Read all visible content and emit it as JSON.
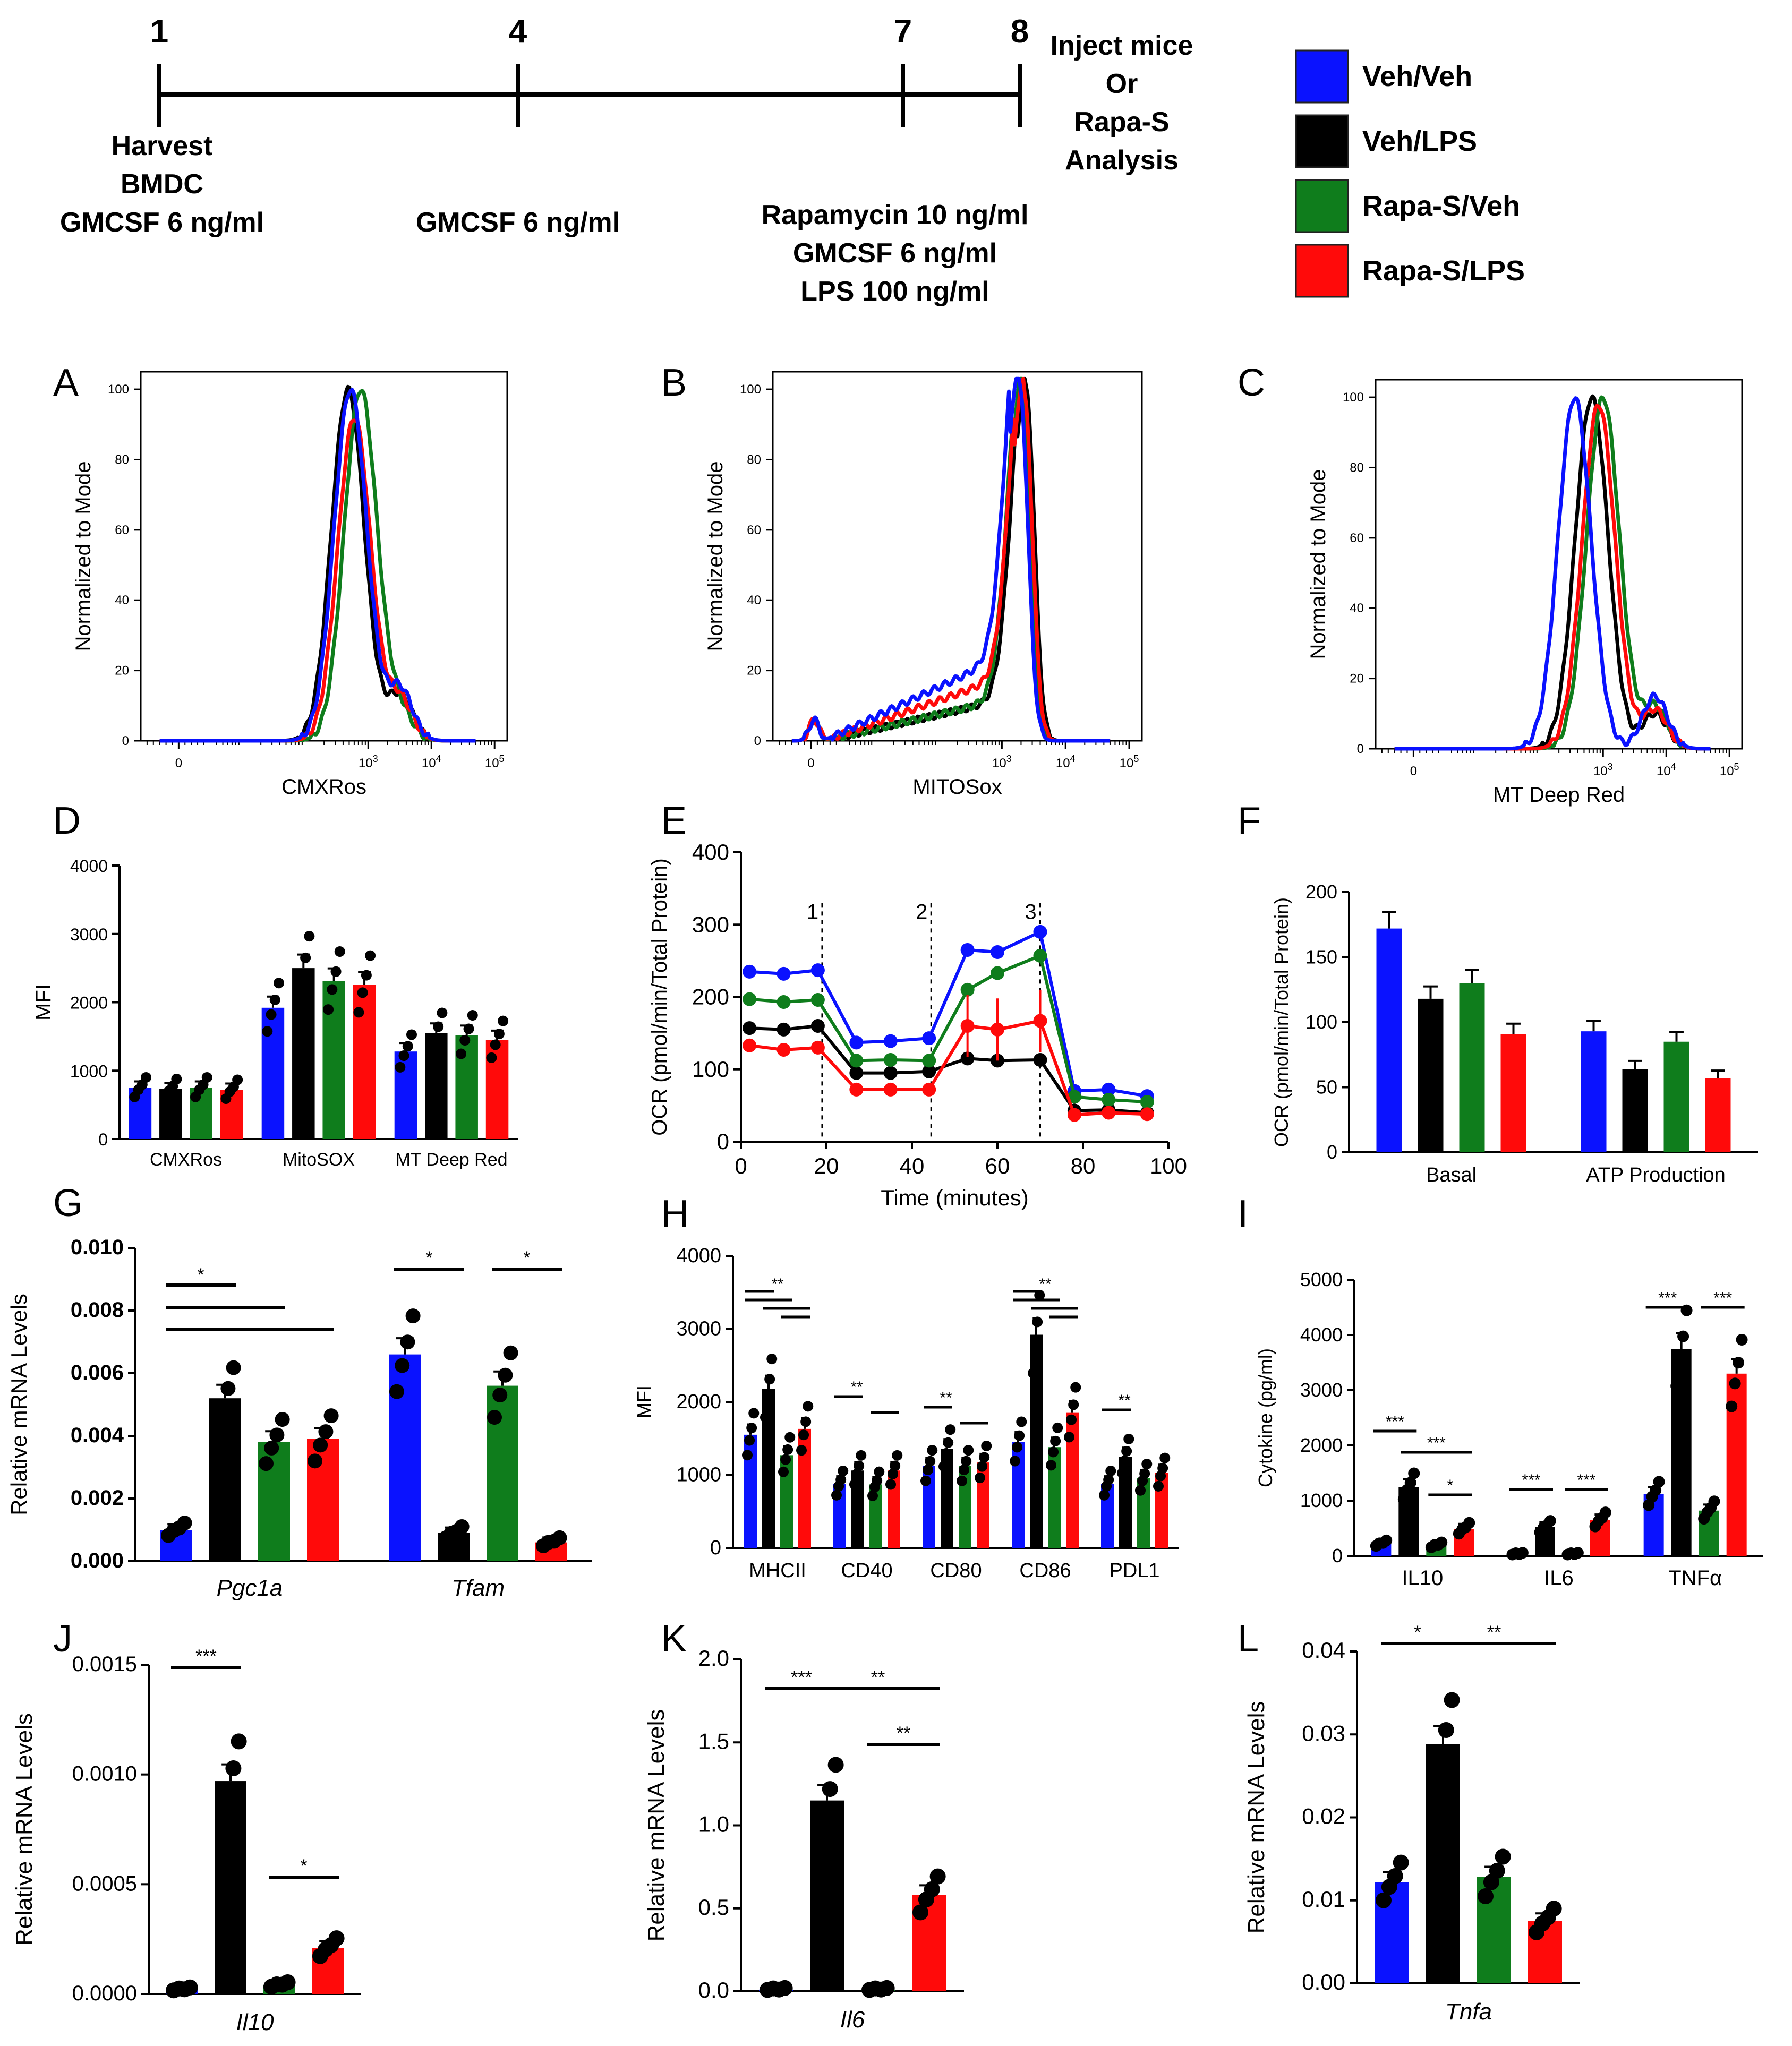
{
  "timeline": {
    "days": [
      "1",
      "4",
      "7",
      "8"
    ],
    "d1_text": [
      "Harvest",
      "BMDC",
      "GMCSF 6 ng/ml"
    ],
    "d4_text": [
      "GMCSF 6 ng/ml"
    ],
    "d7_text": [
      "Rapamycin 10 ng/ml",
      "GMCSF 6 ng/ml",
      "LPS 100 ng/ml"
    ],
    "d8_text": [
      "Inject mice",
      "Or",
      "Rapa-S",
      "Analysis"
    ]
  },
  "legend": [
    {
      "label": "Veh/Veh",
      "color": "#0a12ff"
    },
    {
      "label": "Veh/LPS",
      "color": "#000000"
    },
    {
      "label": "Rapa-S/Veh",
      "color": "#0f7d1c"
    },
    {
      "label": "Rapa-S/LPS",
      "color": "#ff0a0a"
    }
  ],
  "colors": {
    "veh_veh": "#0a12ff",
    "veh_lps": "#000000",
    "rapa_veh": "#0f7d1c",
    "rapa_lps": "#ff0a0a"
  },
  "panel_letters": [
    "A",
    "B",
    "C",
    "D",
    "E",
    "F",
    "G",
    "H",
    "I",
    "J",
    "K",
    "L"
  ],
  "chart_data": [
    {
      "panel": "A",
      "type": "line",
      "xlabel": "CMXRos",
      "ylabel": "Normalized to Mode",
      "yticks": [
        "0",
        "20",
        "40",
        "60",
        "80",
        "100"
      ],
      "xticks": [
        "0",
        "10^3",
        "10^4",
        "10^5"
      ],
      "series": [
        {
          "name": "Veh/Veh",
          "peak_log": 2.72,
          "peak": 100,
          "second_peak": 15
        },
        {
          "name": "Veh/LPS",
          "peak_log": 2.68,
          "peak": 100,
          "second_peak": 13
        },
        {
          "name": "Rapa-S/Veh",
          "peak_log": 2.88,
          "peak": 100,
          "second_peak": 8
        },
        {
          "name": "Rapa-S/LPS",
          "peak_log": 2.78,
          "peak": 92,
          "second_peak": 12
        }
      ]
    },
    {
      "panel": "B",
      "type": "line",
      "xlabel": "MITOSox",
      "ylabel": "Normalized to Mode",
      "yticks": [
        "0",
        "20",
        "40",
        "60",
        "80",
        "100"
      ],
      "xticks": [
        "0",
        "10^3",
        "10^4",
        "10^5"
      ],
      "series": [
        {
          "name": "Veh/Veh",
          "peak_log": 3.28,
          "peak": 100
        },
        {
          "name": "Veh/LPS",
          "peak_log": 3.38,
          "peak": 100
        },
        {
          "name": "Rapa-S/Veh",
          "peak_log": 3.32,
          "peak": 100
        },
        {
          "name": "Rapa-S/LPS",
          "peak_log": 3.35,
          "peak": 98
        }
      ]
    },
    {
      "panel": "C",
      "type": "line",
      "xlabel": "MT Deep Red",
      "ylabel": "Normalized to Mode",
      "yticks": [
        "0",
        "20",
        "40",
        "60",
        "80",
        "100"
      ],
      "xticks": [
        "0",
        "10^3",
        "10^4",
        "10^5"
      ],
      "series": [
        {
          "name": "Veh/Veh",
          "peak_log": 2.55,
          "peak": 100,
          "second_peak": 15
        },
        {
          "name": "Veh/LPS",
          "peak_log": 2.82,
          "peak": 100,
          "second_peak": 10
        },
        {
          "name": "Rapa-S/Veh",
          "peak_log": 3.0,
          "peak": 100,
          "second_peak": 12
        },
        {
          "name": "Rapa-S/LPS",
          "peak_log": 2.93,
          "peak": 98,
          "second_peak": 11
        }
      ]
    },
    {
      "panel": "D",
      "type": "bar",
      "ylabel": "MFI",
      "ylim": [
        0,
        4000
      ],
      "yticks": [
        "0",
        "1000",
        "2000",
        "3000",
        "4000"
      ],
      "categories": [
        "CMXRos",
        "MitoSOX",
        "MT Deep Red"
      ],
      "series": [
        {
          "name": "Veh/Veh",
          "values": [
            750,
            1920,
            1280
          ]
        },
        {
          "name": "Veh/LPS",
          "values": [
            730,
            2500,
            1550
          ]
        },
        {
          "name": "Rapa-S/Veh",
          "values": [
            750,
            2310,
            1520
          ]
        },
        {
          "name": "Rapa-S/LPS",
          "values": [
            720,
            2260,
            1450
          ]
        }
      ]
    },
    {
      "panel": "E",
      "type": "line",
      "xlabel": "Time (minutes)",
      "ylabel": "OCR (pmol/min/Total Protein)",
      "xlim": [
        0,
        100
      ],
      "ylim": [
        0,
        400
      ],
      "xticks": [
        "0",
        "20",
        "40",
        "60",
        "80",
        "100"
      ],
      "yticks": [
        "0",
        "100",
        "200",
        "300",
        "400"
      ],
      "injections": [
        {
          "label": "1",
          "x": 19
        },
        {
          "label": "2",
          "x": 44.5
        },
        {
          "label": "3",
          "x": 70
        }
      ],
      "x": [
        2,
        10,
        18,
        27,
        35,
        44,
        53,
        60,
        70,
        78,
        86,
        95
      ],
      "series": [
        {
          "name": "Veh/Veh",
          "values": [
            235,
            232,
            237,
            137,
            139,
            143,
            265,
            262,
            290,
            70,
            72,
            63
          ]
        },
        {
          "name": "Veh/LPS",
          "values": [
            157,
            155,
            160,
            95,
            95,
            97,
            115,
            112,
            113,
            43,
            44,
            40
          ]
        },
        {
          "name": "Rapa-S/Veh",
          "values": [
            197,
            193,
            196,
            112,
            113,
            112,
            210,
            233,
            257,
            62,
            58,
            55
          ]
        },
        {
          "name": "Rapa-S/LPS",
          "values": [
            133,
            127,
            130,
            72,
            72,
            72,
            160,
            155,
            167,
            37,
            40,
            38
          ]
        }
      ]
    },
    {
      "panel": "F",
      "type": "bar",
      "ylabel": "OCR (pmol/min/Total Protein)",
      "ylim": [
        0,
        200
      ],
      "yticks": [
        "0",
        "50",
        "100",
        "150",
        "200"
      ],
      "categories": [
        "Basal",
        "ATP Production"
      ],
      "series": [
        {
          "name": "Veh/Veh",
          "values": [
            172,
            93
          ]
        },
        {
          "name": "Veh/LPS",
          "values": [
            118,
            64
          ]
        },
        {
          "name": "Rapa-S/Veh",
          "values": [
            130,
            85
          ]
        },
        {
          "name": "Rapa-S/LPS",
          "values": [
            91,
            57
          ]
        }
      ]
    },
    {
      "panel": "G",
      "type": "bar",
      "ylabel": "Relative mRNA Levels",
      "ylim": [
        0,
        0.01
      ],
      "yticks": [
        "0.000",
        "0.002",
        "0.004",
        "0.006",
        "0.008",
        "0.010"
      ],
      "categories": [
        "Pgc1a",
        "Tfam"
      ],
      "series": [
        {
          "name": "Veh/Veh",
          "values": [
            0.001,
            0.0066
          ]
        },
        {
          "name": "Veh/LPS",
          "values": [
            0.0052,
            0.0009
          ]
        },
        {
          "name": "Rapa-S/Veh",
          "values": [
            0.0038,
            0.0056
          ]
        },
        {
          "name": "Rapa-S/LPS",
          "values": [
            0.0039,
            0.0006
          ]
        }
      ],
      "annotations": [
        "*",
        "*",
        "*"
      ]
    },
    {
      "panel": "H",
      "type": "bar",
      "ylabel": "MFI",
      "ylim": [
        0,
        4000
      ],
      "yticks": [
        "0",
        "1000",
        "2000",
        "3000",
        "4000"
      ],
      "categories": [
        "MHCII",
        "CD40",
        "CD80",
        "CD86",
        "PDL1"
      ],
      "series": [
        {
          "name": "Veh/Veh",
          "values": [
            1550,
            880,
            1120,
            1450,
            880
          ]
        },
        {
          "name": "Veh/LPS",
          "values": [
            2180,
            1060,
            1360,
            2920,
            1250
          ]
        },
        {
          "name": "Rapa-S/Veh",
          "values": [
            1270,
            870,
            1120,
            1380,
            960
          ]
        },
        {
          "name": "Rapa-S/LPS",
          "values": [
            1630,
            1060,
            1170,
            1850,
            1030
          ]
        }
      ],
      "annotations": [
        "**",
        "**",
        "**",
        "**",
        "**"
      ]
    },
    {
      "panel": "I",
      "type": "bar",
      "ylabel": "Cytokine  (pg/ml)",
      "ylim": [
        0,
        5000
      ],
      "yticks": [
        "0",
        "1000",
        "2000",
        "3000",
        "4000",
        "5000"
      ],
      "categories": [
        "IL10",
        "IL6",
        "TNFα"
      ],
      "series": [
        {
          "name": "Veh/Veh",
          "values": [
            220,
            30,
            1120
          ]
        },
        {
          "name": "Veh/LPS",
          "values": [
            1250,
            520,
            3750
          ]
        },
        {
          "name": "Rapa-S/Veh",
          "values": [
            190,
            30,
            820
          ]
        },
        {
          "name": "Rapa-S/LPS",
          "values": [
            490,
            650,
            3300
          ]
        }
      ],
      "annotations": [
        "***",
        "***",
        "*",
        "***",
        "***",
        "***",
        "***"
      ]
    },
    {
      "panel": "J",
      "type": "bar",
      "ylabel": "Relative mRNA Levels",
      "xlabel": "Il10",
      "ylim": [
        0,
        0.0015
      ],
      "yticks": [
        "0.0000",
        "0.0005",
        "0.0010",
        "0.0015"
      ],
      "series": [
        {
          "name": "Veh/Veh",
          "values": [
            2e-05
          ]
        },
        {
          "name": "Veh/LPS",
          "values": [
            0.00097
          ]
        },
        {
          "name": "Rapa-S/Veh",
          "values": [
            4e-05
          ]
        },
        {
          "name": "Rapa-S/LPS",
          "values": [
            0.00021
          ]
        }
      ],
      "annotations": [
        "***",
        "*"
      ]
    },
    {
      "panel": "K",
      "type": "bar",
      "ylabel": "Relative mRNA Levels",
      "xlabel": "Il6",
      "ylim": [
        0,
        2.0
      ],
      "yticks": [
        "0.0",
        "0.5",
        "1.0",
        "1.5",
        "2.0"
      ],
      "series": [
        {
          "name": "Veh/Veh",
          "values": [
            0.01
          ]
        },
        {
          "name": "Veh/LPS",
          "values": [
            1.15
          ]
        },
        {
          "name": "Rapa-S/Veh",
          "values": [
            0.01
          ]
        },
        {
          "name": "Rapa-S/LPS",
          "values": [
            0.58
          ]
        }
      ],
      "annotations": [
        "***",
        "**",
        "**"
      ]
    },
    {
      "panel": "L",
      "type": "bar",
      "ylabel": "Relative mRNA Levels",
      "xlabel": "Tnfa",
      "ylim": [
        0,
        0.04
      ],
      "yticks": [
        "0.00",
        "0.01",
        "0.02",
        "0.03",
        "0.04"
      ],
      "series": [
        {
          "name": "Veh/Veh",
          "values": [
            0.0122
          ]
        },
        {
          "name": "Veh/LPS",
          "values": [
            0.0288
          ]
        },
        {
          "name": "Rapa-S/Veh",
          "values": [
            0.0128
          ]
        },
        {
          "name": "Rapa-S/LPS",
          "values": [
            0.0075
          ]
        }
      ],
      "annotations": [
        "*",
        "**"
      ]
    }
  ]
}
